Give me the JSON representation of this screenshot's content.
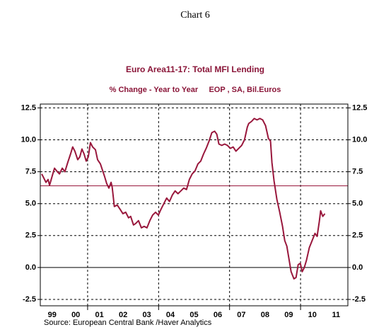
{
  "chart_data": {
    "type": "line",
    "header": "Chart 6",
    "title": "Euro Area11-17: Total MFI Lending",
    "subtitle": "% Change - Year to Year     EOP , SA, Bil.Euros",
    "source": "Source:  European Central Bank /Haver Analytics",
    "x": [
      1999.06,
      1999.15,
      1999.24,
      1999.33,
      1999.39,
      1999.51,
      1999.6,
      1999.72,
      1999.81,
      1999.93,
      2000.04,
      2000.16,
      2000.28,
      2000.37,
      2000.46,
      2000.58,
      2000.67,
      2000.76,
      2000.85,
      2000.94,
      2001.03,
      2001.12,
      2001.21,
      2001.33,
      2001.42,
      2001.54,
      2001.63,
      2001.72,
      2001.81,
      2001.9,
      2001.99,
      2002.04,
      2002.13,
      2002.25,
      2002.37,
      2002.49,
      2002.61,
      2002.73,
      2002.82,
      2002.94,
      2003.03,
      2003.15,
      2003.27,
      2003.39,
      2003.51,
      2003.63,
      2003.75,
      2003.87,
      2003.99,
      2004.1,
      2004.22,
      2004.34,
      2004.46,
      2004.58,
      2004.7,
      2004.82,
      2004.94,
      2005.06,
      2005.18,
      2005.3,
      2005.42,
      2005.54,
      2005.66,
      2005.78,
      2005.9,
      2006.01,
      2006.13,
      2006.25,
      2006.37,
      2006.46,
      2006.55,
      2006.67,
      2006.79,
      2006.91,
      2007.03,
      2007.15,
      2007.27,
      2007.39,
      2007.51,
      2007.63,
      2007.75,
      2007.81,
      2007.93,
      2008.04,
      2008.16,
      2008.28,
      2008.4,
      2008.52,
      2008.64,
      2008.73,
      2008.79,
      2008.88,
      2009.0,
      2009.12,
      2009.24,
      2009.33,
      2009.42,
      2009.51,
      2009.6,
      2009.72,
      2009.81,
      2009.9,
      2009.99,
      2010.07,
      2010.16,
      2010.25,
      2010.37,
      2010.49,
      2010.61,
      2010.7,
      2010.79,
      2010.85,
      2010.94,
      2011.03
    ],
    "series": [
      {
        "color": "#99173c",
        "values": [
          7.33,
          7.0,
          6.67,
          6.89,
          6.44,
          7.22,
          7.78,
          7.5,
          7.33,
          7.78,
          7.5,
          8.22,
          8.89,
          9.44,
          9.11,
          8.44,
          8.67,
          9.28,
          8.89,
          8.33,
          8.67,
          9.78,
          9.44,
          9.22,
          8.44,
          8.11,
          7.61,
          7.11,
          6.56,
          6.22,
          6.67,
          6.28,
          4.78,
          4.89,
          4.56,
          4.22,
          4.33,
          3.89,
          4.0,
          3.33,
          3.44,
          3.67,
          3.11,
          3.22,
          3.11,
          3.67,
          4.11,
          4.33,
          4.11,
          4.56,
          5.0,
          5.44,
          5.17,
          5.67,
          6.0,
          5.78,
          6.0,
          6.22,
          6.11,
          6.89,
          7.33,
          7.56,
          8.11,
          8.33,
          8.89,
          9.33,
          9.89,
          10.56,
          10.67,
          10.44,
          9.67,
          9.56,
          9.67,
          9.56,
          9.33,
          9.44,
          9.11,
          9.33,
          9.56,
          10.0,
          11.0,
          11.28,
          11.44,
          11.67,
          11.56,
          11.67,
          11.56,
          11.11,
          10.11,
          9.89,
          8.22,
          6.78,
          5.33,
          4.33,
          3.22,
          2.11,
          1.67,
          0.67,
          -0.33,
          -0.89,
          -0.78,
          0.22,
          0.33,
          -0.33,
          0.0,
          0.56,
          1.56,
          2.11,
          2.67,
          2.44,
          3.56,
          4.44,
          4.0,
          4.22
        ]
      }
    ],
    "reference_line": {
      "value": 6.4,
      "color": "#99173c"
    },
    "xlim": [
      1999,
      2012
    ],
    "xticks": [
      {
        "value": 1999.5,
        "label": "99"
      },
      {
        "value": 2000.5,
        "label": "00"
      },
      {
        "value": 2001.5,
        "label": "01"
      },
      {
        "value": 2002.5,
        "label": "02"
      },
      {
        "value": 2003.5,
        "label": "03"
      },
      {
        "value": 2004.5,
        "label": "04"
      },
      {
        "value": 2005.5,
        "label": "05"
      },
      {
        "value": 2006.5,
        "label": "06"
      },
      {
        "value": 2007.5,
        "label": "07"
      },
      {
        "value": 2008.5,
        "label": "08"
      },
      {
        "value": 2009.5,
        "label": "09"
      },
      {
        "value": 2010.5,
        "label": "10"
      },
      {
        "value": 2011.5,
        "label": "11"
      }
    ],
    "xgrid": [
      2001,
      2004,
      2007,
      2010
    ],
    "ylim": [
      -3,
      12.8
    ],
    "yticks": [
      {
        "value": -2.5,
        "label": "-2.5"
      },
      {
        "value": 0,
        "label": "0.0"
      },
      {
        "value": 2.5,
        "label": "2.5"
      },
      {
        "value": 5,
        "label": "5.0"
      },
      {
        "value": 7.5,
        "label": "7.5"
      },
      {
        "value": 10,
        "label": "10.0"
      },
      {
        "value": 12.5,
        "label": "12.5"
      }
    ],
    "grid": true
  }
}
